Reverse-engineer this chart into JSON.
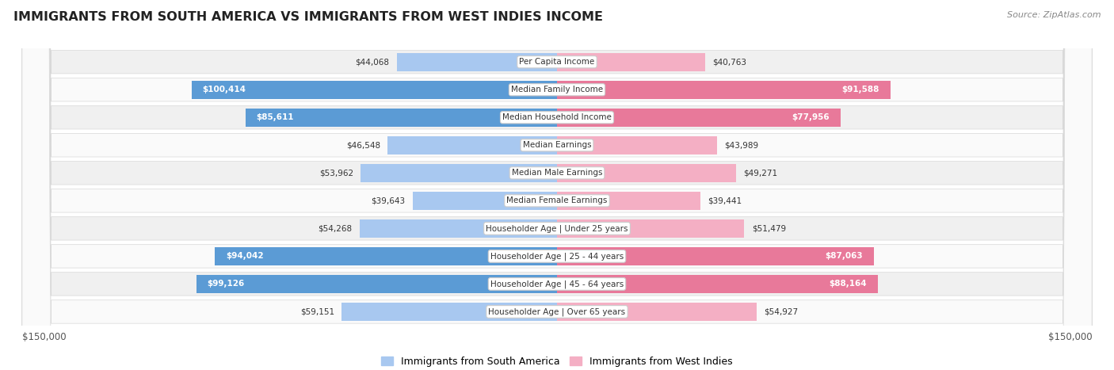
{
  "title": "IMMIGRANTS FROM SOUTH AMERICA VS IMMIGRANTS FROM WEST INDIES INCOME",
  "source": "Source: ZipAtlas.com",
  "categories": [
    "Per Capita Income",
    "Median Family Income",
    "Median Household Income",
    "Median Earnings",
    "Median Male Earnings",
    "Median Female Earnings",
    "Householder Age | Under 25 years",
    "Householder Age | 25 - 44 years",
    "Householder Age | 45 - 64 years",
    "Householder Age | Over 65 years"
  ],
  "south_america": [
    44068,
    100414,
    85611,
    46548,
    53962,
    39643,
    54268,
    94042,
    99126,
    59151
  ],
  "west_indies": [
    40763,
    91588,
    77956,
    43989,
    49271,
    39441,
    51479,
    87063,
    88164,
    54927
  ],
  "south_america_labels": [
    "$44,068",
    "$100,414",
    "$85,611",
    "$46,548",
    "$53,962",
    "$39,643",
    "$54,268",
    "$94,042",
    "$99,126",
    "$59,151"
  ],
  "west_indies_labels": [
    "$40,763",
    "$91,588",
    "$77,956",
    "$43,989",
    "$49,271",
    "$39,441",
    "$51,479",
    "$87,063",
    "$88,164",
    "$54,927"
  ],
  "max_value": 150000,
  "color_south_america_light": "#a8c8f0",
  "color_south_america_dark": "#5b9bd5",
  "color_west_indies_light": "#f4afc4",
  "color_west_indies_dark": "#e8799a",
  "legend_south_america": "Immigrants from South America",
  "legend_west_indies": "Immigrants from West Indies",
  "bg_odd": "#f0f0f0",
  "bg_even": "#fafafa",
  "inside_label_threshold": 75000,
  "xlabel_left": "$150,000",
  "xlabel_right": "$150,000"
}
